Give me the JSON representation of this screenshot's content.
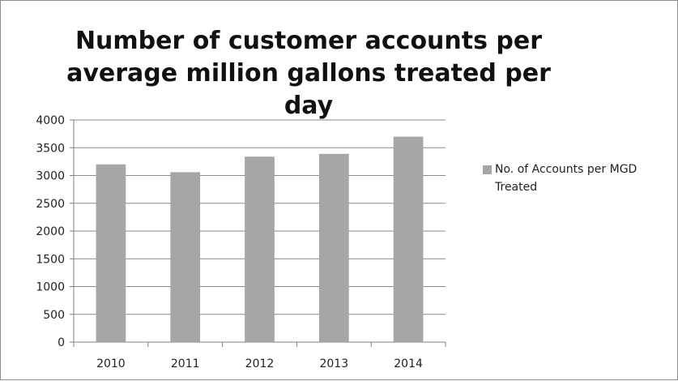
{
  "chart_data": {
    "type": "bar",
    "title": "Number of customer accounts per average million gallons treated per day",
    "categories": [
      "2010",
      "2011",
      "2012",
      "2013",
      "2014"
    ],
    "series": [
      {
        "name": "No. of Accounts per MGD Treated",
        "values": [
          3200,
          3060,
          3340,
          3390,
          3700
        ]
      }
    ],
    "ylim": [
      0,
      4000
    ],
    "yticks": [
      0,
      500,
      1000,
      1500,
      2000,
      2500,
      3000,
      3500,
      4000
    ],
    "grid": true,
    "legend_position": "right",
    "colors": {
      "bar": "#a6a6a6",
      "grid": "#8a8a8a",
      "axis": "#7f7f7f"
    }
  }
}
